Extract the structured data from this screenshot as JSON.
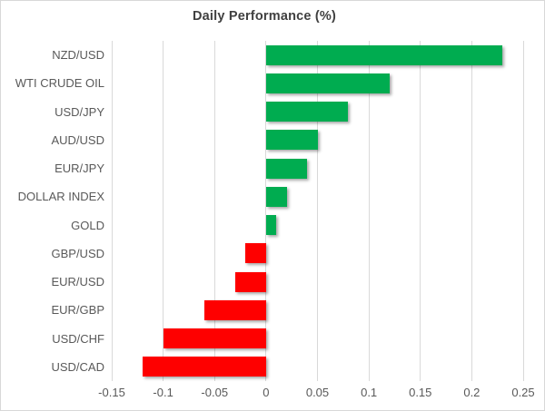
{
  "chart_data": {
    "type": "bar",
    "orientation": "horizontal",
    "title": "Daily Performance (%)",
    "categories": [
      "NZD/USD",
      "WTI CRUDE OIL",
      "USD/JPY",
      "AUD/USD",
      "EUR/JPY",
      "DOLLAR INDEX",
      "GOLD",
      "GBP/USD",
      "EUR/USD",
      "EUR/GBP",
      "USD/CHF",
      "USD/CAD"
    ],
    "values": [
      0.23,
      0.12,
      0.08,
      0.05,
      0.04,
      0.02,
      0.01,
      -0.02,
      -0.03,
      -0.06,
      -0.1,
      -0.12
    ],
    "xlim": [
      -0.15,
      0.25
    ],
    "x_ticks": [
      -0.15,
      -0.1,
      -0.05,
      0,
      0.05,
      0.1,
      0.15,
      0.2,
      0.25
    ],
    "x_tick_labels": [
      "-0.15",
      "-0.1",
      "-0.05",
      "0",
      "0.05",
      "0.1",
      "0.15",
      "0.2",
      "0.25"
    ],
    "grid": true,
    "legend": "none",
    "colors": {
      "positive_bar": "#00AC50",
      "negative_bar": "#FE0000",
      "gridline": "#D9D9D9",
      "title_text": "#404040",
      "axis_text": "#595959",
      "background": "#FFFFFF",
      "border": "#D8D8D8"
    }
  }
}
